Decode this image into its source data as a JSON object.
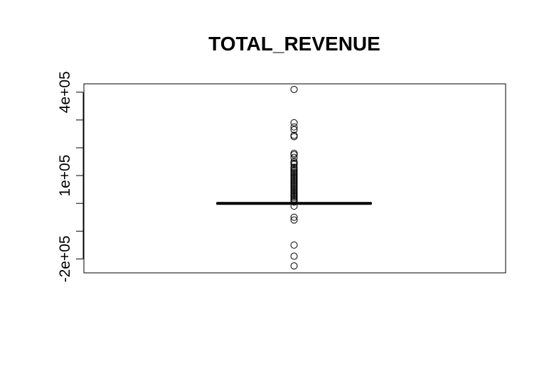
{
  "chart_data": {
    "type": "boxplot",
    "title": "TOTAL_REVENUE",
    "xlabel": "",
    "ylabel": "",
    "ylim": [
      -250000,
      430000
    ],
    "y_ticks": [
      -200000,
      -100000,
      0,
      100000,
      200000,
      300000,
      400000
    ],
    "y_tick_labels": [
      "-2e+05",
      "",
      "",
      "1e+05",
      "",
      "",
      "4e+05"
    ],
    "grid": false,
    "box": {
      "q1": -1000,
      "median": 0,
      "q3": 1000,
      "whisker_low": -3000,
      "whisker_high": 3000
    },
    "outliers": [
      410000,
      290000,
      275000,
      265000,
      245000,
      240000,
      180000,
      175000,
      165000,
      150000,
      145000,
      140000,
      130000,
      125000,
      120000,
      115000,
      110000,
      105000,
      100000,
      95000,
      90000,
      85000,
      80000,
      75000,
      70000,
      65000,
      60000,
      55000,
      50000,
      45000,
      40000,
      35000,
      30000,
      25000,
      20000,
      15000,
      10000,
      5000,
      -10000,
      -50000,
      -60000,
      -150000,
      -190000,
      -225000
    ],
    "colors": {
      "box": "#000000",
      "points": "#000000",
      "frame": "#000000"
    }
  }
}
